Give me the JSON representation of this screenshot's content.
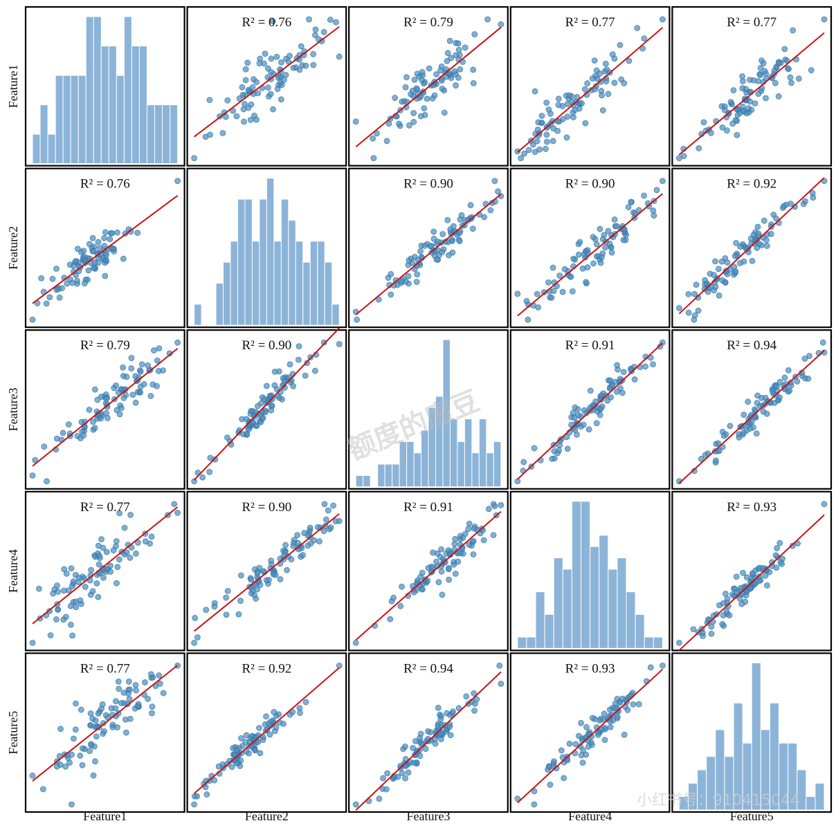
{
  "chart_data": {
    "type": "scatter",
    "layout": "pair-plot",
    "features": [
      "Feature1",
      "Feature2",
      "Feature3",
      "Feature4",
      "Feature5"
    ],
    "r_squared": [
      [
        null,
        0.76,
        0.79,
        0.77,
        0.77
      ],
      [
        0.76,
        null,
        0.9,
        0.9,
        0.92
      ],
      [
        0.79,
        0.9,
        null,
        0.91,
        0.94
      ],
      [
        0.77,
        0.9,
        0.91,
        null,
        0.93
      ],
      [
        0.77,
        0.92,
        0.94,
        0.93,
        null
      ]
    ],
    "r2_labels": [
      [
        "",
        "R² = 0.76",
        "R² = 0.79",
        "R² = 0.77",
        "R² = 0.77"
      ],
      [
        "R² = 0.76",
        "",
        "R² = 0.90",
        "R² = 0.90",
        "R² = 0.92"
      ],
      [
        "R² = 0.79",
        "R² = 0.90",
        "",
        "R² = 0.91",
        "R² = 0.94"
      ],
      [
        "R² = 0.77",
        "R² = 0.90",
        "R² = 0.91",
        "",
        "R² = 0.93"
      ],
      [
        "R² = 0.77",
        "R² = 0.92",
        "R² = 0.94",
        "R² = 0.93",
        ""
      ]
    ],
    "histograms": [
      [
        1,
        2,
        1,
        3,
        3,
        3,
        3,
        5,
        5,
        4,
        4,
        3,
        5,
        4,
        4,
        2,
        2,
        2,
        2
      ],
      [
        1,
        0,
        0,
        2,
        3,
        4,
        6,
        6,
        4,
        6,
        7,
        4,
        6,
        5,
        4,
        3,
        4,
        4,
        3,
        1
      ],
      [
        1,
        1,
        0,
        2,
        2,
        2,
        4,
        4,
        3,
        5,
        7,
        8,
        13,
        6,
        4,
        6,
        3,
        6,
        3,
        4
      ],
      [
        1,
        1,
        5,
        3,
        8,
        7,
        13,
        13,
        9,
        10,
        7,
        8,
        5,
        3,
        1,
        1
      ],
      [
        1,
        2,
        3,
        4,
        6,
        4,
        8,
        5,
        11,
        6,
        8,
        5,
        5,
        3,
        1,
        2
      ]
    ],
    "regression_line": true,
    "grid": false,
    "legend": "none",
    "watermarks": [
      "额度的魔豆",
      "小红书号：910415044"
    ]
  }
}
